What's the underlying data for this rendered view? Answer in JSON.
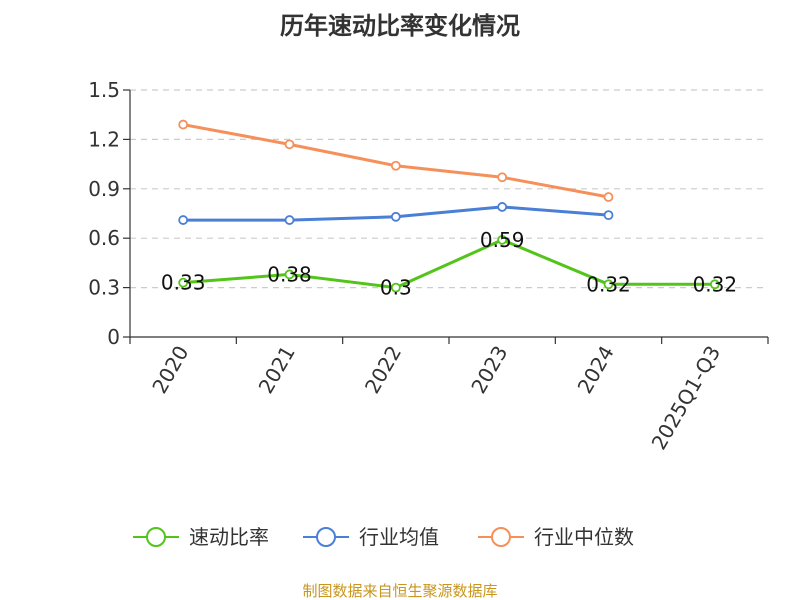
{
  "chart_data": {
    "type": "line",
    "title": "历年速动比率变化情况",
    "categories": [
      "2020",
      "2021",
      "2022",
      "2023",
      "2024",
      "2025Q1-Q3"
    ],
    "ylim": [
      0,
      1.5
    ],
    "yticks": [
      "0",
      "0.3",
      "0.6",
      "0.9",
      "1.2",
      "1.5"
    ],
    "grid": true,
    "legend_position": "bottom",
    "series": [
      {
        "name": "速动比率",
        "color": "#52c41a",
        "values": [
          0.33,
          0.38,
          0.3,
          0.59,
          0.32,
          0.32
        ],
        "labels": [
          "0.33",
          "0.38",
          "0.3",
          "0.59",
          "0.32",
          "0.32"
        ]
      },
      {
        "name": "行业均值",
        "color": "#4a7fd6",
        "values": [
          0.71,
          0.71,
          0.73,
          0.79,
          0.74,
          null
        ]
      },
      {
        "name": "行业中位数",
        "color": "#f5905a",
        "values": [
          1.29,
          1.17,
          1.04,
          0.97,
          0.85,
          null
        ]
      }
    ],
    "source": "制图数据来自恒生聚源数据库"
  }
}
